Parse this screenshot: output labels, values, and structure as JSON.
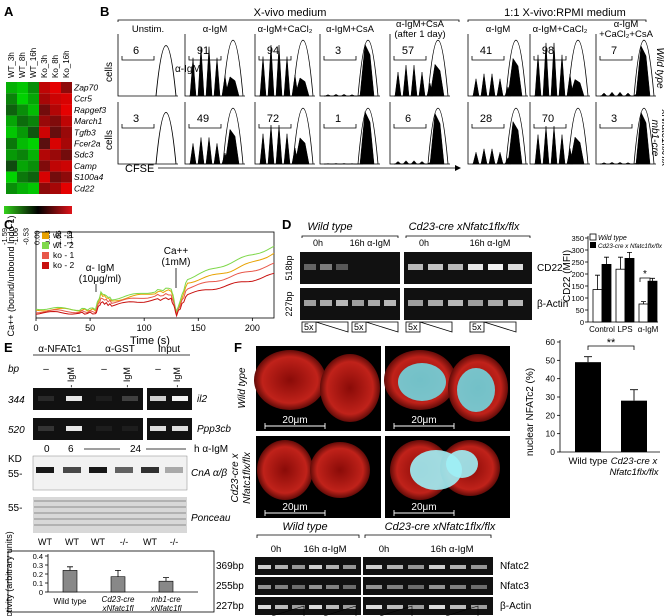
{
  "panel_labels": [
    "A",
    "B",
    "C",
    "D",
    "E",
    "F"
  ],
  "panel_a": {
    "columns": [
      "WT_3h",
      "WT_8h",
      "WT_16h",
      "Ko_3h",
      "Ko_8h",
      "Ko_16h"
    ],
    "genes": [
      "Zap70",
      "Ccr5",
      "Rapgef3",
      "March1",
      "Tgfb3",
      "Fcer2a",
      "Sdc3",
      "Camp",
      "S100a4",
      "Cd22"
    ],
    "scale": [
      "-1.59",
      "-1.06",
      "-0.53",
      "0.00",
      "0.53",
      "1.06",
      "1.59"
    ],
    "heat": [
      [
        -1.2,
        -1.4,
        -0.9,
        1.2,
        1.5,
        0.8
      ],
      [
        -0.8,
        -1.5,
        -1.1,
        1.0,
        1.3,
        1.4
      ],
      [
        -0.5,
        -0.9,
        -1.3,
        0.6,
        1.1,
        1.5
      ],
      [
        -1.1,
        -0.6,
        -0.8,
        0.9,
        0.7,
        1.2
      ],
      [
        -1.4,
        -1.0,
        -0.4,
        1.3,
        0.5,
        0.9
      ],
      [
        -0.7,
        -1.3,
        -1.5,
        0.4,
        1.4,
        1.0
      ],
      [
        -1.0,
        -0.8,
        -1.2,
        1.1,
        0.9,
        0.6
      ],
      [
        -0.3,
        -1.1,
        -0.9,
        0.7,
        1.2,
        1.3
      ],
      [
        -1.5,
        -0.7,
        -0.5,
        1.4,
        0.6,
        0.8
      ],
      [
        -0.9,
        -1.2,
        -1.4,
        0.8,
        1.0,
        1.5
      ]
    ]
  },
  "panel_b": {
    "group1": "X-vivo medium",
    "group2": "1:1 X-vivo:RPMI medium",
    "conditions": [
      "Unstim.",
      "α-IgM",
      "α-IgM+CaCl₂",
      "α-IgM+CsA",
      "α-IgM+CsA\n(after 1 day)",
      "α-IgM",
      "α-IgM+CaCl₂",
      "α-IgM\n+CaCl₂+CsA"
    ],
    "wt_values": [
      "6",
      "91",
      "94",
      "3",
      "57",
      "41",
      "98",
      "7"
    ],
    "ko_values": [
      "3",
      "49",
      "72",
      "1",
      "6",
      "28",
      "70",
      "3"
    ],
    "ylabel": "cells",
    "xlabel": "CFSE",
    "inset_label": "α-IgM",
    "row1_label": "Wild type",
    "row2_label": "mb1-cre\nxNfatc1flx/flx"
  },
  "panel_c": {
    "ylabel": "Ca++ (bound/unbound Indo-1)",
    "xlabel": "Time (s)",
    "xticks": [
      "0",
      "50",
      "100",
      "150",
      "200"
    ],
    "yticks": [],
    "legend": [
      "wt - 1",
      "wt - 2",
      "ko - 1",
      "ko - 2"
    ],
    "colors": [
      "#e8a200",
      "#7fd84a",
      "#e8574a",
      "#c8100e"
    ],
    "annot1": "α- IgM\n(10μg/ml)",
    "annot2": "Ca++\n(1mM)"
  },
  "panel_d": {
    "wt_title": "Wild type",
    "ko_title": "Cd23-cre xNfatc1flx/flx",
    "lane_labels": [
      "0h",
      "16h α-IgM",
      "0h",
      "16h α-IgM"
    ],
    "band_sizes": [
      "518bp",
      "227bp"
    ],
    "bands": [
      "CD22",
      "β-Actin"
    ],
    "dilution": "5x",
    "bar_chart": {
      "ylabel": "CD22 (MFI)",
      "yticks": [
        "0",
        "50",
        "100",
        "150",
        "200",
        "250",
        "300",
        "350"
      ],
      "categories": [
        "Control",
        "LPS",
        "α-IgM"
      ],
      "legend": [
        "Wild type",
        "Cd23-cre x Nfatc1flx/flx"
      ],
      "sig": "*"
    }
  },
  "panel_e": {
    "headers": [
      "α-NFATc1",
      "α-GST",
      "Input"
    ],
    "lane_signs": [
      "–",
      "α- IgM",
      "–",
      "α- IgM",
      "–",
      "α- IgM"
    ],
    "bp_label": "bp",
    "bp_sizes": [
      "344",
      "520"
    ],
    "genes": [
      "il2",
      "Ppp3cb"
    ],
    "kd_label": "KD",
    "time_labels": [
      "0",
      "6",
      "24",
      "h α-IgM"
    ],
    "kd_marks": [
      "55-",
      "55-"
    ],
    "blot_labels": [
      "CnA α/β",
      "Ponceau"
    ],
    "genotypes": [
      "WT",
      "WT",
      "WT",
      "-/-",
      "WT",
      "-/-"
    ],
    "activity_ylabel": "Cn- activity (arbitrary units)",
    "activity_yticks": [
      "0",
      "0.1",
      "0.2",
      "0.3",
      "0.4"
    ],
    "activity_categories": [
      "Wild type",
      "Cd23-cre xNfatc1flx/flx",
      "mb1-cre xNfatc1flx/flx"
    ]
  },
  "panel_f": {
    "row_labels": [
      "Wild type",
      "Cd23-cre x\nNfatc1flx/flx"
    ],
    "scale_text": "20μm",
    "bar_ylabel": "nuclear NFATc2 (%)",
    "bar_yticks": [
      "0",
      "10",
      "20",
      "30",
      "40",
      "50",
      "60"
    ],
    "bar_categories": [
      "Wild type",
      "Cd23-cre x\nNfatc1flx/flx"
    ],
    "sig": "**",
    "gel_wt": "Wild type",
    "gel_ko": "Cd23-cre xNfatc1flx/flx",
    "gel_lanes": [
      "0h",
      "16h α-IgM",
      "0h",
      "16h α-IgM"
    ],
    "gel_sizes": [
      "369bp",
      "255bp",
      "227bp"
    ],
    "gel_genes": [
      "Nfatc2",
      "Nfatc3",
      "β-Actin"
    ],
    "dilution": "5x"
  },
  "chart_data": [
    {
      "type": "line",
      "title": "",
      "xlabel": "Time (s)",
      "ylabel": "Ca++ (bound/unbound Indo-1)",
      "xlim": [
        0,
        220
      ],
      "x": [
        0,
        20,
        40,
        55,
        60,
        70,
        90,
        110,
        125,
        130,
        140,
        160,
        180,
        200,
        220
      ],
      "series": [
        {
          "name": "wt - 1",
          "values": [
            0.1,
            0.11,
            0.1,
            0.1,
            0.3,
            0.22,
            0.27,
            0.32,
            0.35,
            0.05,
            0.45,
            0.52,
            0.6,
            0.7,
            0.82
          ]
        },
        {
          "name": "wt - 2",
          "values": [
            0.12,
            0.12,
            0.11,
            0.12,
            0.32,
            0.24,
            0.29,
            0.34,
            0.38,
            0.08,
            0.5,
            0.6,
            0.7,
            0.8,
            0.9
          ]
        },
        {
          "name": "ko - 1",
          "values": [
            0.08,
            0.09,
            0.08,
            0.08,
            0.25,
            0.2,
            0.24,
            0.28,
            0.3,
            0.05,
            0.38,
            0.45,
            0.52,
            0.6,
            0.68
          ]
        },
        {
          "name": "ko - 2",
          "values": [
            0.06,
            0.07,
            0.06,
            0.06,
            0.2,
            0.16,
            0.2,
            0.23,
            0.25,
            0.04,
            0.3,
            0.36,
            0.42,
            0.48,
            0.55
          ]
        }
      ]
    },
    {
      "type": "bar",
      "title": "",
      "ylabel": "CD22 (MFI)",
      "ylim": [
        0,
        350
      ],
      "categories": [
        "Control",
        "LPS",
        "α-IgM"
      ],
      "series": [
        {
          "name": "Wild type",
          "values": [
            135,
            220,
            75
          ]
        },
        {
          "name": "Cd23-cre x Nfatc1flx/flx",
          "values": [
            240,
            265,
            170
          ]
        }
      ]
    },
    {
      "type": "bar",
      "title": "",
      "ylabel": "Cn- activity (arbitrary units)",
      "ylim": [
        0,
        0.4
      ],
      "categories": [
        "Wild type",
        "Cd23-cre xNfatc1flx/flx",
        "mb1-cre xNfatc1flx/flx"
      ],
      "values": [
        0.24,
        0.17,
        0.12
      ]
    },
    {
      "type": "bar",
      "title": "",
      "ylabel": "nuclear NFATc2 (%)",
      "ylim": [
        0,
        60
      ],
      "categories": [
        "Wild type",
        "Cd23-cre x Nfatc1flx/flx"
      ],
      "values": [
        49,
        28
      ]
    }
  ]
}
